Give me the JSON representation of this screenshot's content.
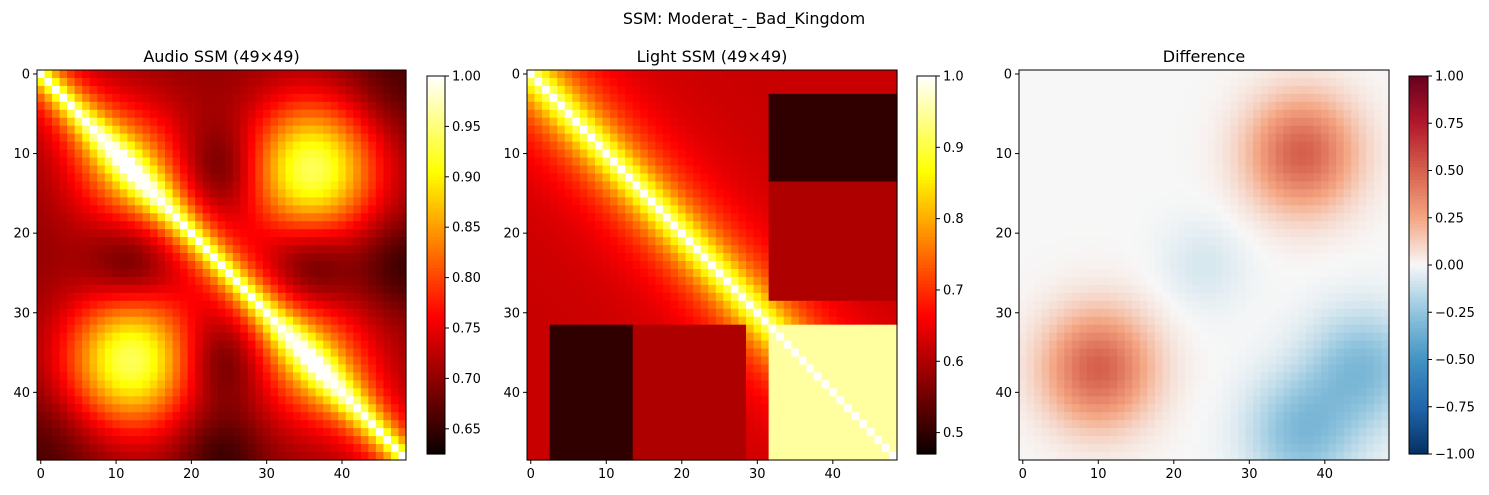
{
  "suptitle": "SSM: Moderat_-_Bad_Kingdom",
  "chart_data": [
    {
      "type": "heatmap",
      "title": "Audio SSM (49×49)",
      "colormap": "hot",
      "n": 49,
      "x_ticks": [
        0,
        10,
        20,
        30,
        40
      ],
      "y_ticks": [
        0,
        10,
        20,
        30,
        40
      ],
      "x_tick_labels": [
        "0",
        "10",
        "20",
        "30",
        "40"
      ],
      "y_tick_labels": [
        "0",
        "10",
        "20",
        "30",
        "40"
      ],
      "zlim": [
        0.625,
        1.0
      ],
      "colorbar_ticks": [
        0.65,
        0.7,
        0.75,
        0.8,
        0.85,
        0.9,
        0.95,
        1.0
      ],
      "colorbar_labels": [
        "0.65",
        "0.70",
        "0.75",
        "0.80",
        "0.85",
        "0.90",
        "0.95",
        "1.00"
      ],
      "structure": "blocks at indices 0-23 and 24-48 with diagonal; rows ~12 and ~36 similar; low-similarity regions near (12,24),(24,12),(36,24),(24,36),(0,48)"
    },
    {
      "type": "heatmap",
      "title": "Light SSM (49×49)",
      "colormap": "hot",
      "n": 49,
      "x_ticks": [
        0,
        10,
        20,
        30,
        40
      ],
      "y_ticks": [
        0,
        10,
        20,
        30,
        40
      ],
      "x_tick_labels": [
        "0",
        "10",
        "20",
        "30",
        "40"
      ],
      "y_tick_labels": [
        "0",
        "10",
        "20",
        "30",
        "40"
      ],
      "zlim": [
        0.47,
        1.0
      ],
      "colorbar_ticks": [
        0.5,
        0.6,
        0.7,
        0.8,
        0.9,
        1.0
      ],
      "colorbar_labels": [
        "0.5",
        "0.6",
        "0.7",
        "0.8",
        "0.9",
        "1.0"
      ],
      "structure": "strong diagonal; bright block at indices 32-48; dark off-diagonal block between 3-30 and 32-48"
    },
    {
      "type": "heatmap",
      "title": "Difference",
      "colormap": "RdBu_r",
      "n": 49,
      "x_ticks": [
        0,
        10,
        20,
        30,
        40
      ],
      "y_ticks": [
        0,
        10,
        20,
        30,
        40
      ],
      "x_tick_labels": [
        "0",
        "10",
        "20",
        "30",
        "40"
      ],
      "y_tick_labels": [
        "0",
        "10",
        "20",
        "30",
        "40"
      ],
      "zlim": [
        -1.0,
        1.0
      ],
      "colorbar_ticks": [
        -1.0,
        -0.75,
        -0.5,
        -0.25,
        0.0,
        0.25,
        0.5,
        0.75,
        1.0
      ],
      "colorbar_labels": [
        "−1.00",
        "−0.75",
        "−0.50",
        "−0.25",
        "0.00",
        "0.25",
        "0.50",
        "0.75",
        "1.00"
      ],
      "structure": "positive (red) around (10,37) and (37,10) up to ~0.5; negative (blue) around (45,37) down to ~-0.3; near zero elsewhere"
    }
  ]
}
